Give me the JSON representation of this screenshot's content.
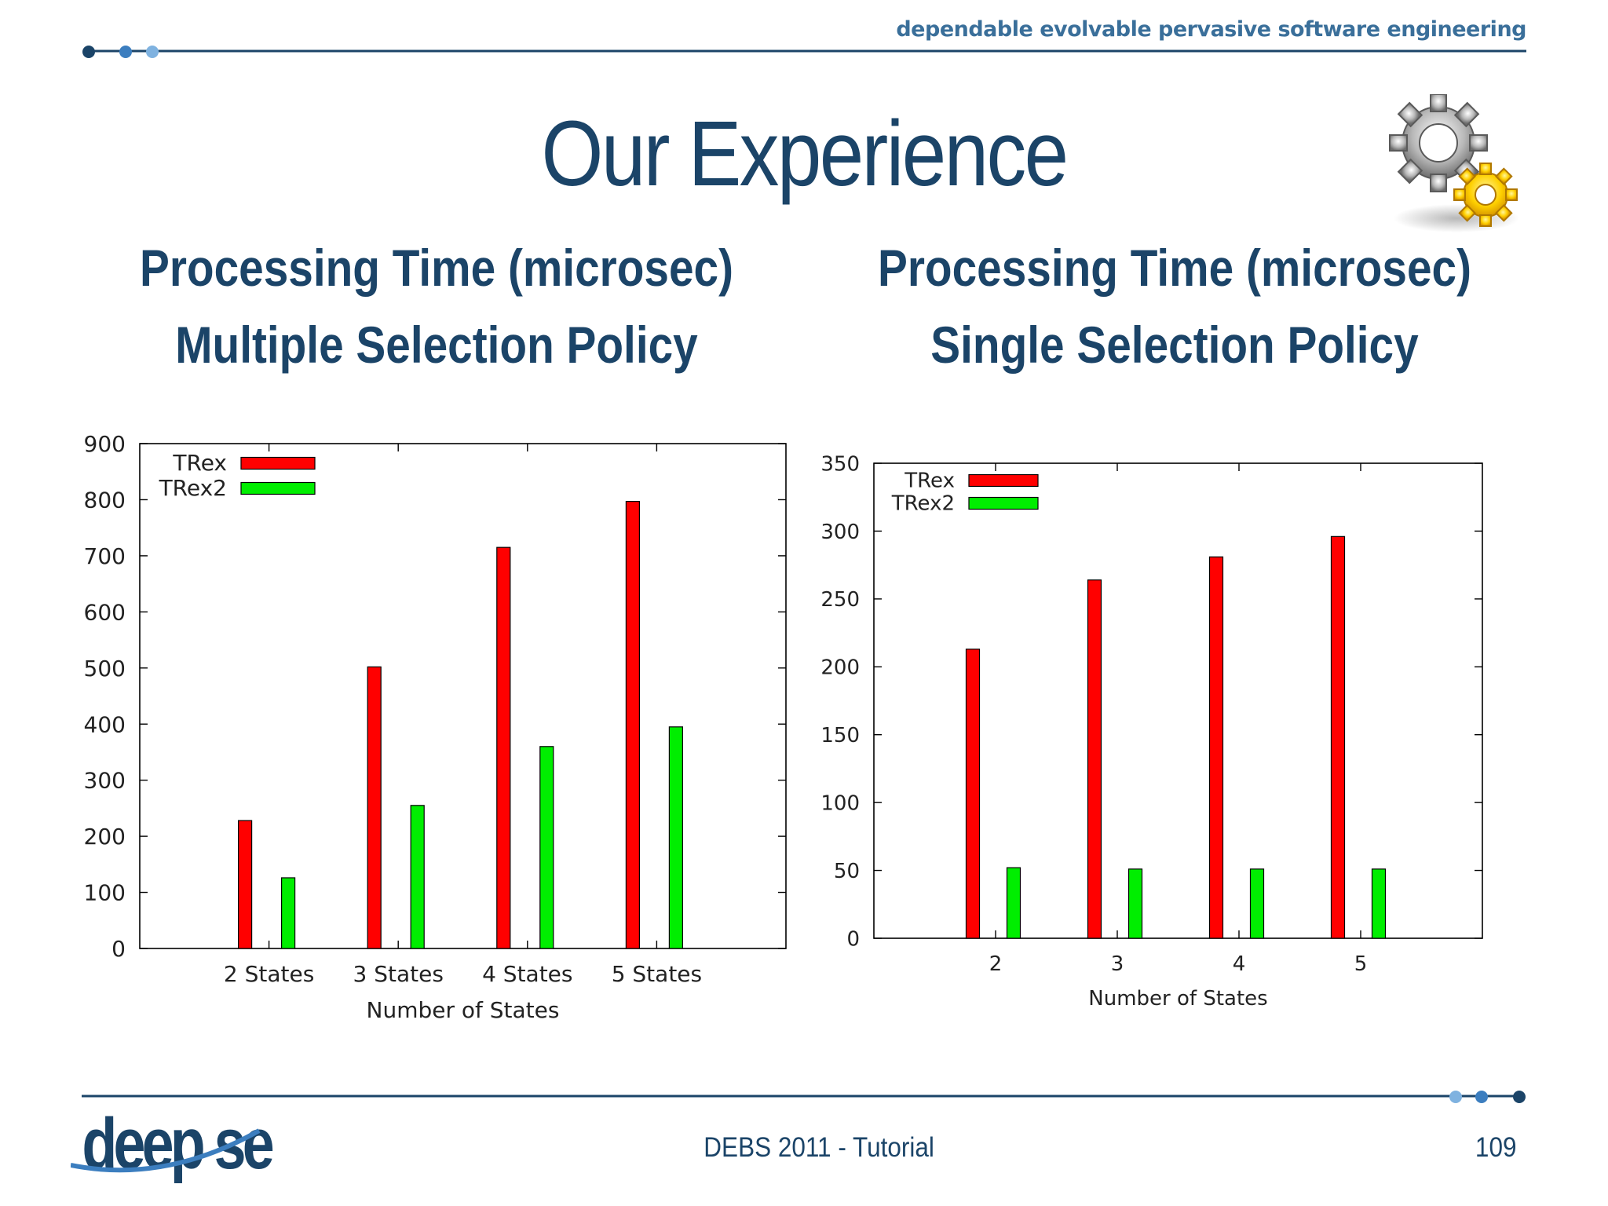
{
  "header": {
    "tagline": "dependable evolvable pervasive software engineering"
  },
  "title": "Our Experience",
  "left": {
    "subtitle_line1": "Processing Time (microsec)",
    "subtitle_line2": "Multiple Selection Policy"
  },
  "right": {
    "subtitle_line1": "Processing Time (microsec)",
    "subtitle_line2": "Single Selection Policy"
  },
  "footer": {
    "logo_text": "deep se",
    "center": "DEBS 2011 - Tutorial",
    "page_number": "109"
  },
  "colors": {
    "title": "#1b4468",
    "trex": "#ff0000",
    "trex2": "#00ee00",
    "rule": "#1b4468"
  },
  "chart_data": [
    {
      "type": "bar",
      "title": "Processing Time (microsec) Multiple Selection Policy",
      "categories": [
        "2 States",
        "3 States",
        "4 States",
        "5 States"
      ],
      "series": [
        {
          "name": "TRex",
          "values": [
            228,
            502,
            715,
            797
          ]
        },
        {
          "name": "TRex2",
          "values": [
            126,
            255,
            360,
            395
          ]
        }
      ],
      "xlabel": "Number of States",
      "ylabel": "",
      "ylim": [
        0,
        900
      ],
      "yticks": [
        0,
        100,
        200,
        300,
        400,
        500,
        600,
        700,
        800,
        900
      ],
      "legend": "top-left",
      "grid": false
    },
    {
      "type": "bar",
      "title": "Processing Time (microsec) Single Selection Policy",
      "categories": [
        "2",
        "3",
        "4",
        "5"
      ],
      "series": [
        {
          "name": "TRex",
          "values": [
            213,
            264,
            281,
            296
          ]
        },
        {
          "name": "TRex2",
          "values": [
            52,
            51,
            51,
            51
          ]
        }
      ],
      "xlabel": "Number of States",
      "ylabel": "",
      "ylim": [
        0,
        350
      ],
      "yticks": [
        0,
        50,
        100,
        150,
        200,
        250,
        300,
        350
      ],
      "legend": "top-left",
      "grid": false
    }
  ]
}
